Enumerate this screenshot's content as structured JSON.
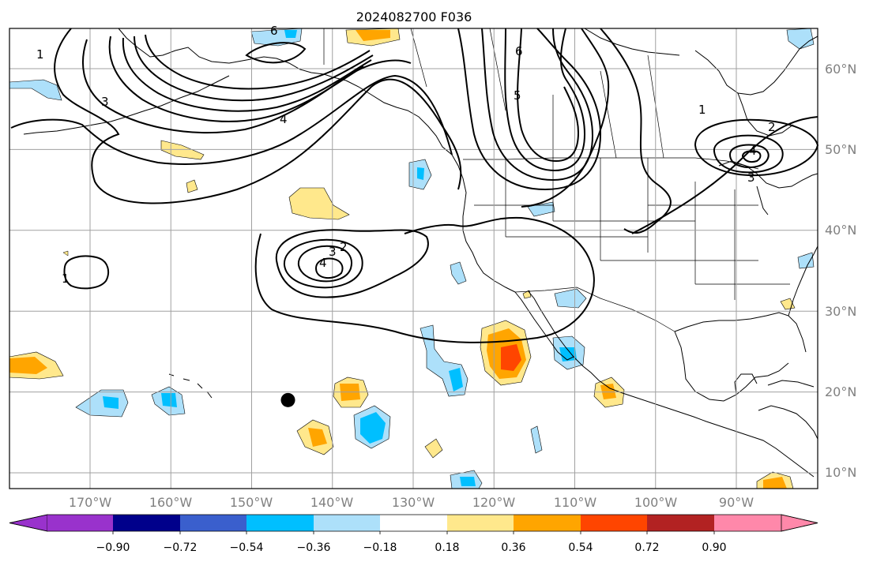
{
  "title": "2024082700 F036",
  "map": {
    "lon_labels": [
      "170°W",
      "160°W",
      "150°W",
      "140°W",
      "130°W",
      "120°W",
      "110°W",
      "100°W",
      "90°W"
    ],
    "lat_labels": [
      "60°N",
      "50°N",
      "40°N",
      "30°N",
      "20°N",
      "10°N"
    ],
    "marker": {
      "label": "",
      "lon": -145.5,
      "lat": 19.0
    }
  },
  "contours": {
    "labels": [
      "1",
      "3",
      "4",
      "6",
      "5",
      "6",
      "1",
      "2",
      "4",
      "3",
      "2",
      "3",
      "4",
      "1"
    ],
    "line_color": "#000000"
  },
  "colorbar": {
    "ticks": [
      "−0.90",
      "−0.72",
      "−0.54",
      "−0.36",
      "−0.18",
      "0.18",
      "0.36",
      "0.54",
      "0.72",
      "0.90"
    ],
    "colors": [
      "#9932CC",
      "#00008B",
      "#3A5FCD",
      "#00BFFF",
      "#ADE0FA",
      "#FFFFFF",
      "#FFE88C",
      "#FFA500",
      "#FF4500",
      "#B22222",
      "#FF88AA"
    ],
    "extend": "both"
  },
  "shading_colors": {
    "neg_light": "#ADE0FA",
    "neg_mid": "#00BFFF",
    "pos_light": "#FFE88C",
    "pos_mid": "#FFA500",
    "pos_strong": "#FF4500"
  }
}
